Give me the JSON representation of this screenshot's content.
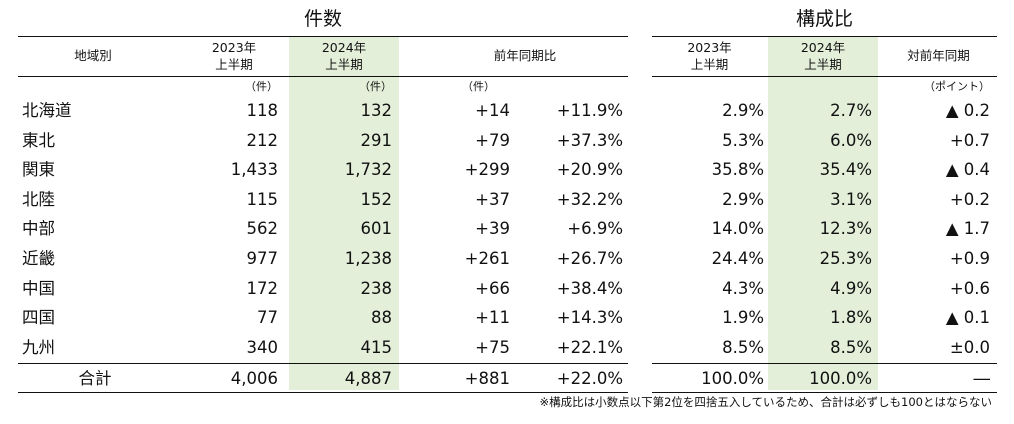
{
  "titles": {
    "count": "件数",
    "share": "構成比"
  },
  "headers": {
    "region": "地域別",
    "count_2023": [
      "2023年",
      "上半期"
    ],
    "count_2024": [
      "2024年",
      "上半期"
    ],
    "count_yoy": "前年同期比",
    "share_2023": [
      "2023年",
      "上半期"
    ],
    "share_2024": [
      "2024年",
      "上半期"
    ],
    "share_yoy": "対前年同期"
  },
  "units": {
    "c2023": "（件）",
    "c2024": "（件）",
    "diff": "（件）",
    "point": "（ポイント）"
  },
  "rows": [
    {
      "region": "北海道",
      "c2023": "118",
      "c2024": "132",
      "diff": "+14",
      "pct": "+11.9%",
      "s2023": "2.9%",
      "s2024": "2.7%",
      "pt": "▲ 0.2"
    },
    {
      "region": "東北",
      "c2023": "212",
      "c2024": "291",
      "diff": "+79",
      "pct": "+37.3%",
      "s2023": "5.3%",
      "s2024": "6.0%",
      "pt": "+0.7"
    },
    {
      "region": "関東",
      "c2023": "1,433",
      "c2024": "1,732",
      "diff": "+299",
      "pct": "+20.9%",
      "s2023": "35.8%",
      "s2024": "35.4%",
      "pt": "▲ 0.4"
    },
    {
      "region": "北陸",
      "c2023": "115",
      "c2024": "152",
      "diff": "+37",
      "pct": "+32.2%",
      "s2023": "2.9%",
      "s2024": "3.1%",
      "pt": "+0.2"
    },
    {
      "region": "中部",
      "c2023": "562",
      "c2024": "601",
      "diff": "+39",
      "pct": "+6.9%",
      "s2023": "14.0%",
      "s2024": "12.3%",
      "pt": "▲ 1.7"
    },
    {
      "region": "近畿",
      "c2023": "977",
      "c2024": "1,238",
      "diff": "+261",
      "pct": "+26.7%",
      "s2023": "24.4%",
      "s2024": "25.3%",
      "pt": "+0.9"
    },
    {
      "region": "中国",
      "c2023": "172",
      "c2024": "238",
      "diff": "+66",
      "pct": "+38.4%",
      "s2023": "4.3%",
      "s2024": "4.9%",
      "pt": "+0.6"
    },
    {
      "region": "四国",
      "c2023": "77",
      "c2024": "88",
      "diff": "+11",
      "pct": "+14.3%",
      "s2023": "1.9%",
      "s2024": "1.8%",
      "pt": "▲ 0.1"
    },
    {
      "region": "九州",
      "c2023": "340",
      "c2024": "415",
      "diff": "+75",
      "pct": "+22.1%",
      "s2023": "8.5%",
      "s2024": "8.5%",
      "pt": "±0.0"
    }
  ],
  "total": {
    "region": "合計",
    "c2023": "4,006",
    "c2024": "4,887",
    "diff": "+881",
    "pct": "+22.0%",
    "s2023": "100.0%",
    "s2024": "100.0%",
    "pt": "―"
  },
  "note": "※構成比は小数点以下第2位を四捨五入しているため、合計は必ずしも100とはならない",
  "colors": {
    "highlight": "#e3efd9",
    "line": "#111111"
  }
}
